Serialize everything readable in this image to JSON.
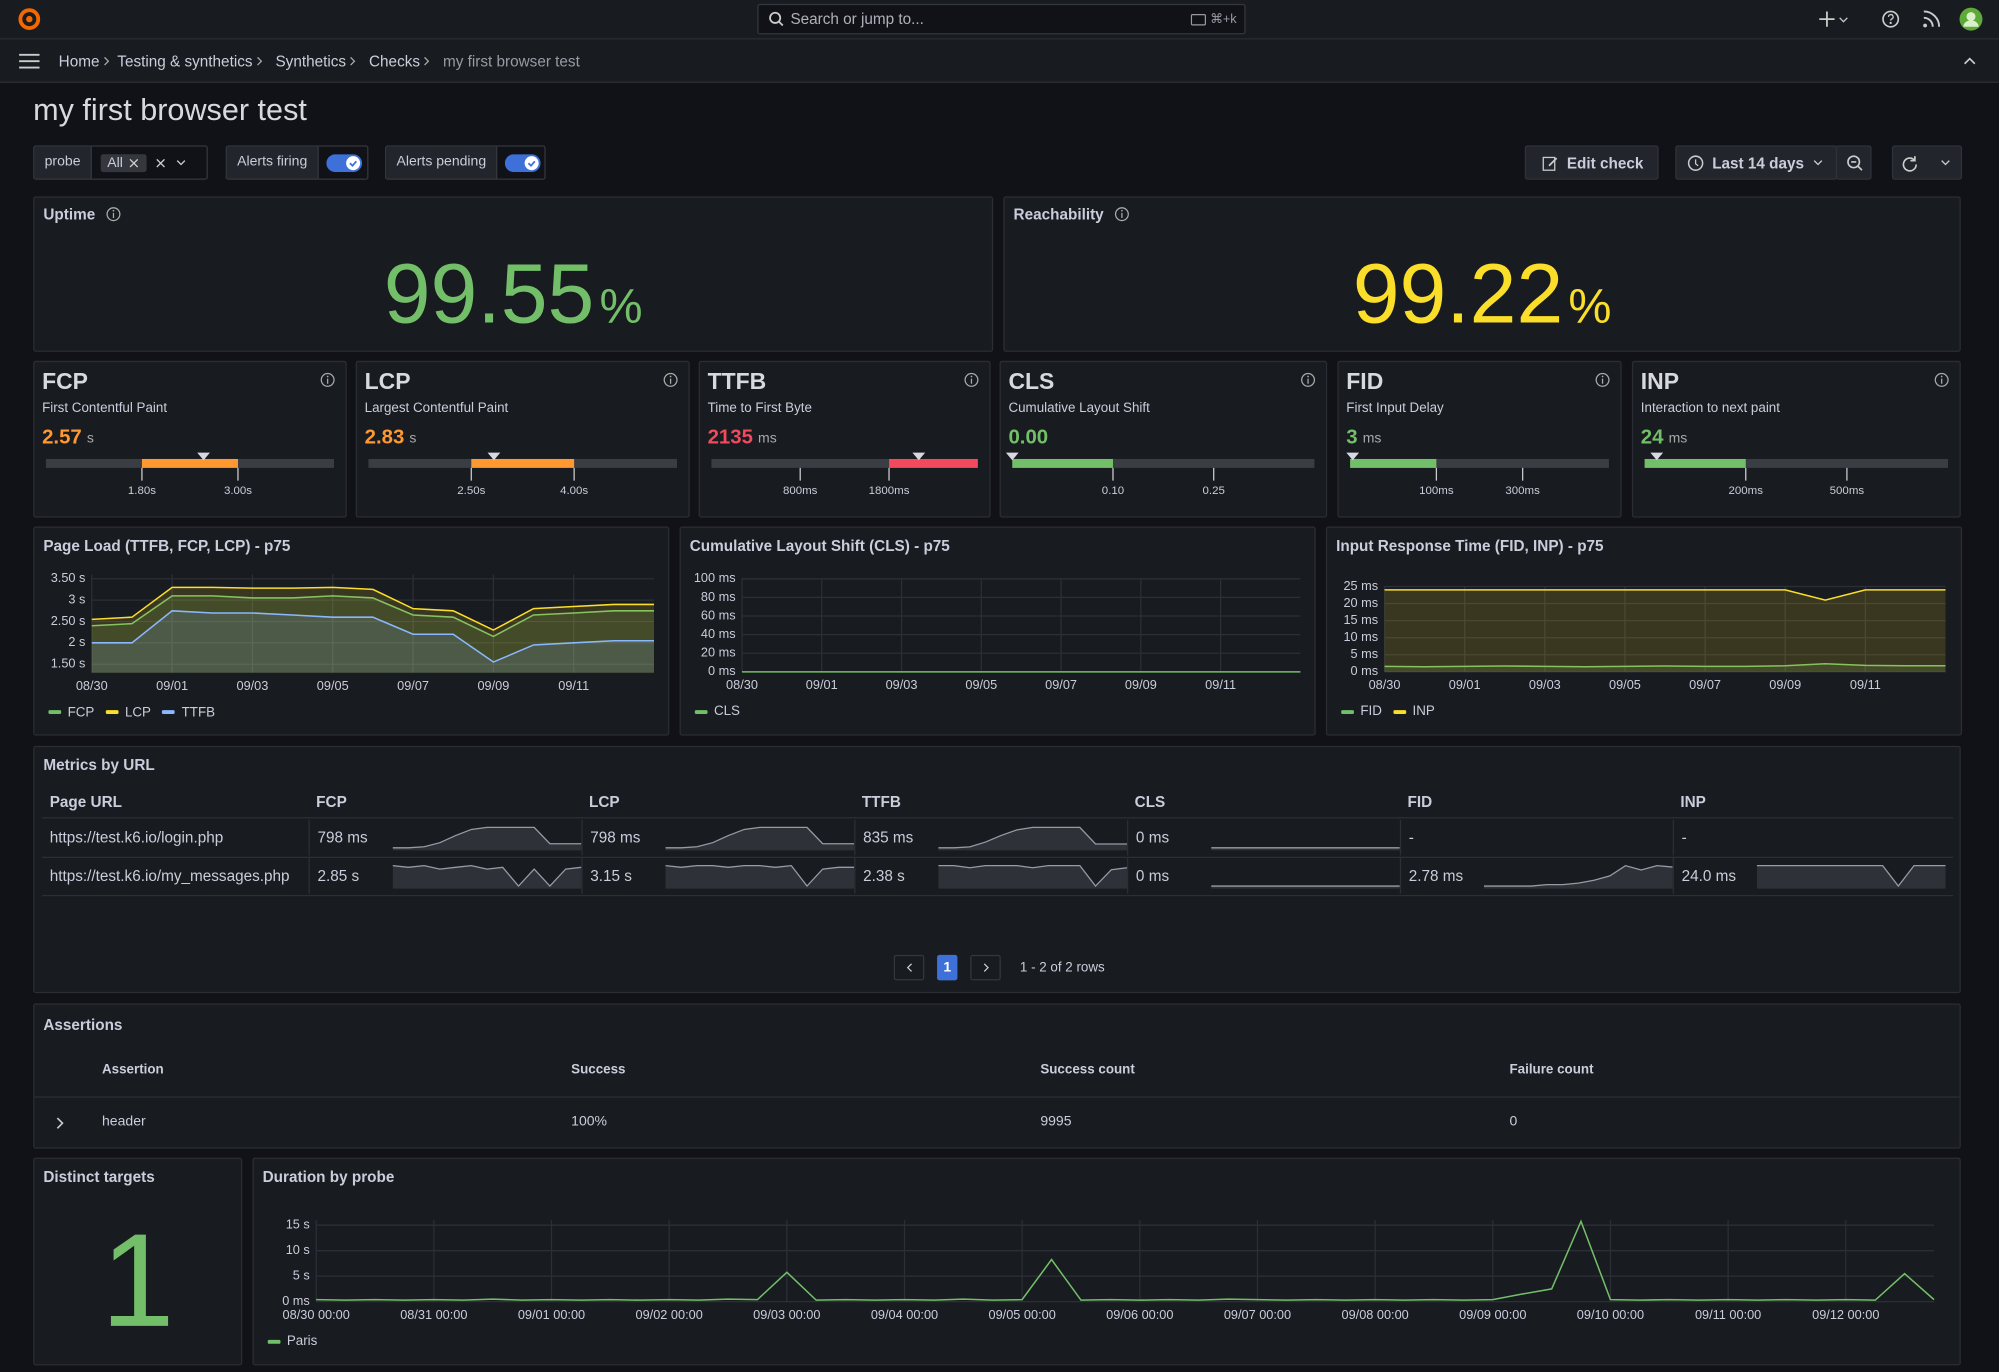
{
  "topbar": {
    "search": "Search or jump to...",
    "shortcut": "⌘+k"
  },
  "breadcrumbs": [
    "Home",
    "Testing & synthetics",
    "Synthetics",
    "Checks",
    "my first browser test"
  ],
  "title": "my first browser test",
  "filters": {
    "probe": "probe",
    "probe_value": "All",
    "alerts_firing": "Alerts firing",
    "alerts_pending": "Alerts pending"
  },
  "actions": {
    "edit": "Edit check",
    "time_range": "Last 14 days"
  },
  "stats": [
    {
      "title": "Uptime",
      "value": 99.55,
      "unit": "%",
      "color": "#73bf69"
    },
    {
      "title": "Reachability",
      "value": 99.22,
      "unit": "%",
      "color": "#fade2a"
    }
  ],
  "vitals": [
    {
      "name": "FCP",
      "description": "First Contentful Paint",
      "value": 2.57,
      "unit": "s",
      "color": "#ff9830",
      "xlim": [
        0.6,
        4.2
      ],
      "ticks": [
        {
          "value": 1.8,
          "label": "1.80s"
        },
        {
          "value": 3,
          "label": "3.00s"
        }
      ]
    },
    {
      "name": "LCP",
      "description": "Largest Contentful Paint",
      "value": 2.83,
      "unit": "s",
      "color": "#ff9830",
      "xlim": [
        1,
        5.5
      ],
      "ticks": [
        {
          "value": 2.5,
          "label": "2.50s"
        },
        {
          "value": 4,
          "label": "4.00s"
        }
      ]
    },
    {
      "name": "TTFB",
      "description": "Time to First Byte",
      "value": 2135,
      "unit": "ms",
      "color": "#f2495c",
      "xlim": [
        0,
        2800
      ],
      "ticks": [
        {
          "value": 800,
          "label": "800ms"
        },
        {
          "value": 1800,
          "label": "1800ms"
        }
      ]
    },
    {
      "name": "CLS",
      "description": "Cumulative Layout Shift",
      "value": 0,
      "value_label": "0.00",
      "color": "#73bf69",
      "xlim": [
        0,
        0.4
      ],
      "ticks": [
        {
          "value": 0.1,
          "label": "0.10"
        },
        {
          "value": 0.25,
          "label": "0.25"
        }
      ]
    },
    {
      "name": "FID",
      "description": "First Input Delay",
      "value": 3,
      "unit": "ms",
      "color": "#73bf69",
      "xlim": [
        0,
        500
      ],
      "ticks": [
        {
          "value": 100,
          "label": "100ms"
        },
        {
          "value": 300,
          "label": "300ms"
        }
      ]
    },
    {
      "name": "INP",
      "description": "Interaction to next paint",
      "value": 24,
      "unit": "ms",
      "color": "#73bf69",
      "xlim": [
        0,
        800
      ],
      "ticks": [
        {
          "value": 200,
          "label": "200ms"
        },
        {
          "value": 500,
          "label": "500ms"
        }
      ]
    }
  ],
  "charts": [
    {
      "type": "line",
      "title": "Page Load (TTFB, FCP, LCP) - p75",
      "fill": true,
      "grid": true,
      "categories": [
        "08/30",
        null,
        "09/01",
        null,
        "09/03",
        null,
        "09/05",
        null,
        "09/07",
        null,
        "09/09",
        null,
        "09/11",
        null,
        null
      ],
      "ylim": [
        1.3,
        3.6
      ],
      "yticks": [
        {
          "value": 1.5,
          "label": "1.50 s"
        },
        {
          "value": 2,
          "label": "2 s"
        },
        {
          "value": 2.5,
          "label": "2.50 s"
        },
        {
          "value": 3,
          "label": "3 s"
        },
        {
          "value": 3.5,
          "label": "3.50 s"
        }
      ],
      "series": [
        {
          "name": "FCP",
          "color": "#73bf69",
          "values": [
            2.4,
            2.45,
            3.1,
            3.1,
            3.05,
            3.05,
            3.1,
            3.05,
            2.65,
            2.6,
            2.15,
            2.65,
            2.7,
            2.75,
            2.75
          ]
        },
        {
          "name": "LCP",
          "color": "#fade2a",
          "values": [
            2.55,
            2.6,
            3.3,
            3.3,
            3.28,
            3.28,
            3.3,
            3.25,
            2.8,
            2.75,
            2.3,
            2.8,
            2.85,
            2.9,
            2.9
          ]
        },
        {
          "name": "TTFB",
          "color": "#8ab8ff",
          "values": [
            2.0,
            2.0,
            2.75,
            2.7,
            2.7,
            2.65,
            2.6,
            2.6,
            2.2,
            2.2,
            1.55,
            1.95,
            2.0,
            2.05,
            2.05
          ]
        }
      ]
    },
    {
      "type": "line",
      "title": "Cumulative Layout Shift (CLS) - p75",
      "fill": false,
      "grid": true,
      "categories": [
        "08/30",
        null,
        "09/01",
        null,
        "09/03",
        null,
        "09/05",
        null,
        "09/07",
        null,
        "09/09",
        null,
        "09/11",
        null,
        null
      ],
      "ylim": [
        0,
        100
      ],
      "yticks": [
        {
          "value": 0,
          "label": "0 ms"
        },
        {
          "value": 20,
          "label": "20 ms"
        },
        {
          "value": 40,
          "label": "40 ms"
        },
        {
          "value": 60,
          "label": "60 ms"
        },
        {
          "value": 80,
          "label": "80 ms"
        },
        {
          "value": 100,
          "label": "100 ms"
        }
      ],
      "series": [
        {
          "name": "CLS",
          "color": "#73bf69",
          "values": [
            0,
            0,
            0,
            0,
            0,
            0,
            0,
            0,
            0,
            0,
            0,
            0,
            0,
            0,
            0
          ]
        }
      ]
    },
    {
      "type": "line",
      "title": "Input Response Time (FID, INP) - p75",
      "fill": true,
      "grid": true,
      "categories": [
        "08/30",
        null,
        "09/01",
        null,
        "09/03",
        null,
        "09/05",
        null,
        "09/07",
        null,
        "09/09",
        null,
        "09/11",
        null,
        null
      ],
      "ylim": [
        0,
        25
      ],
      "yticks": [
        {
          "value": 0,
          "label": "0 ms"
        },
        {
          "value": 5,
          "label": "5 ms"
        },
        {
          "value": 10,
          "label": "10 ms"
        },
        {
          "value": 15,
          "label": "15 ms"
        },
        {
          "value": 20,
          "label": "20 ms"
        },
        {
          "value": 25,
          "label": "25 ms"
        }
      ],
      "series": [
        {
          "name": "FID",
          "color": "#73bf69",
          "values": [
            1.6,
            1.5,
            1.6,
            1.7,
            1.6,
            1.5,
            1.6,
            1.7,
            1.6,
            1.6,
            1.8,
            2.4,
            1.9,
            1.8,
            1.8
          ]
        },
        {
          "name": "INP",
          "color": "#fade2a",
          "values": [
            24,
            24,
            24,
            24,
            24,
            24,
            24,
            24,
            24,
            24,
            24,
            21,
            24,
            24,
            24
          ]
        }
      ]
    }
  ],
  "metrics_table": {
    "title": "Metrics by URL",
    "columns": [
      "Page URL",
      "FCP",
      "LCP",
      "TTFB",
      "CLS",
      "FID",
      "INP"
    ],
    "rows": [
      {
        "url": "https://test.k6.io/login.php",
        "cells": [
          {
            "text": "798 ms",
            "spark": [
              600,
              600,
              610,
              650,
              720,
              780,
              800,
              800,
              800,
              800,
              640,
              640,
              640
            ]
          },
          {
            "text": "798 ms",
            "spark": [
              600,
              600,
              610,
              650,
              720,
              780,
              800,
              800,
              800,
              800,
              640,
              640,
              640
            ]
          },
          {
            "text": "835 ms",
            "spark": [
              620,
              620,
              630,
              680,
              750,
              810,
              835,
              835,
              835,
              835,
              660,
              660,
              660
            ]
          },
          {
            "text": "0 ms",
            "spark": [
              0,
              0,
              0,
              0,
              0,
              0,
              0,
              0,
              0,
              0,
              0,
              0,
              0
            ]
          },
          {
            "text": "-"
          },
          {
            "text": "-"
          }
        ]
      },
      {
        "url": "https://test.k6.io/my_messages.php",
        "cells": [
          {
            "text": "2.85 s",
            "spark": [
              2.9,
              2.85,
              2.9,
              2.8,
              2.85,
              2.9,
              2.8,
              2.85,
              2.3,
              2.8,
              2.3,
              2.8,
              2.85
            ]
          },
          {
            "text": "3.15 s",
            "spark": [
              3.2,
              3.15,
              3.2,
              3.2,
              3.15,
              3.2,
              3.2,
              3.15,
              3.2,
              2.6,
              3.1,
              3.15,
              3.15
            ]
          },
          {
            "text": "2.38 s",
            "spark": [
              2.4,
              2.4,
              2.35,
              2.4,
              2.4,
              2.4,
              2.35,
              2.4,
              2.4,
              2.4,
              1.9,
              2.3,
              2.35
            ]
          },
          {
            "text": "0 ms",
            "spark": [
              0,
              0,
              0,
              0,
              0,
              0,
              0,
              0,
              0,
              0,
              0,
              0,
              0
            ]
          },
          {
            "text": "2.78 ms",
            "spark": [
              1.5,
              1.5,
              1.5,
              1.5,
              1.6,
              1.6,
              1.7,
              1.9,
              2.2,
              2.9,
              2.6,
              2.9,
              2.8
            ]
          },
          {
            "text": "24.0 ms",
            "spark": [
              24,
              24,
              24,
              24,
              24,
              24,
              24,
              24,
              24,
              21,
              24,
              24,
              24
            ]
          }
        ]
      }
    ],
    "pagination": {
      "page": 1,
      "summary": "1 - 2 of 2 rows"
    }
  },
  "assertions": {
    "title": "Assertions",
    "columns": [
      "Assertion",
      "Success",
      "Success count",
      "Failure count"
    ],
    "rows": [
      [
        "header",
        "100%",
        9995,
        0
      ]
    ]
  },
  "distinct_targets": {
    "title": "Distinct targets",
    "value": 1
  },
  "duration_chart": {
    "type": "line",
    "title": "Duration by probe",
    "fill": false,
    "grid": true,
    "categories": [
      "08/30 00:00",
      null,
      null,
      null,
      "08/31 00:00",
      null,
      null,
      null,
      "09/01 00:00",
      null,
      null,
      null,
      "09/02 00:00",
      null,
      null,
      null,
      "09/03 00:00",
      null,
      null,
      null,
      "09/04 00:00",
      null,
      null,
      null,
      "09/05 00:00",
      null,
      null,
      null,
      "09/06 00:00",
      null,
      null,
      null,
      "09/07 00:00",
      null,
      null,
      null,
      "09/08 00:00",
      null,
      null,
      null,
      "09/09 00:00",
      null,
      null,
      null,
      "09/10 00:00",
      null,
      null,
      null,
      "09/11 00:00",
      null,
      null,
      null,
      "09/12 00:00",
      null,
      null,
      null
    ],
    "ylim": [
      0,
      16
    ],
    "yticks": [
      {
        "value": 0,
        "label": "0 ms"
      },
      {
        "value": 5,
        "label": "5 s"
      },
      {
        "value": 10,
        "label": "10 s"
      },
      {
        "value": 15,
        "label": "15 s"
      }
    ],
    "series": [
      {
        "name": "Paris",
        "color": "#73bf69",
        "values": [
          0.4,
          0.3,
          0.4,
          0.3,
          0.4,
          0.3,
          0.5,
          0.3,
          0.4,
          0.3,
          0.4,
          0.3,
          0.4,
          0.3,
          0.5,
          0.4,
          5.75,
          0.3,
          0.4,
          0.3,
          0.4,
          0.3,
          0.5,
          0.3,
          0.4,
          8.25,
          0.3,
          0.4,
          0.3,
          0.4,
          0.3,
          0.5,
          0.4,
          0.3,
          0.4,
          0.3,
          0.4,
          0.3,
          0.4,
          0.3,
          0.4,
          1.5,
          2.5,
          15.75,
          0.4,
          0.3,
          0.4,
          0.3,
          0.4,
          0.3,
          0.4,
          0.3,
          0.4,
          0.3,
          5.5,
          0.4
        ]
      }
    ]
  }
}
